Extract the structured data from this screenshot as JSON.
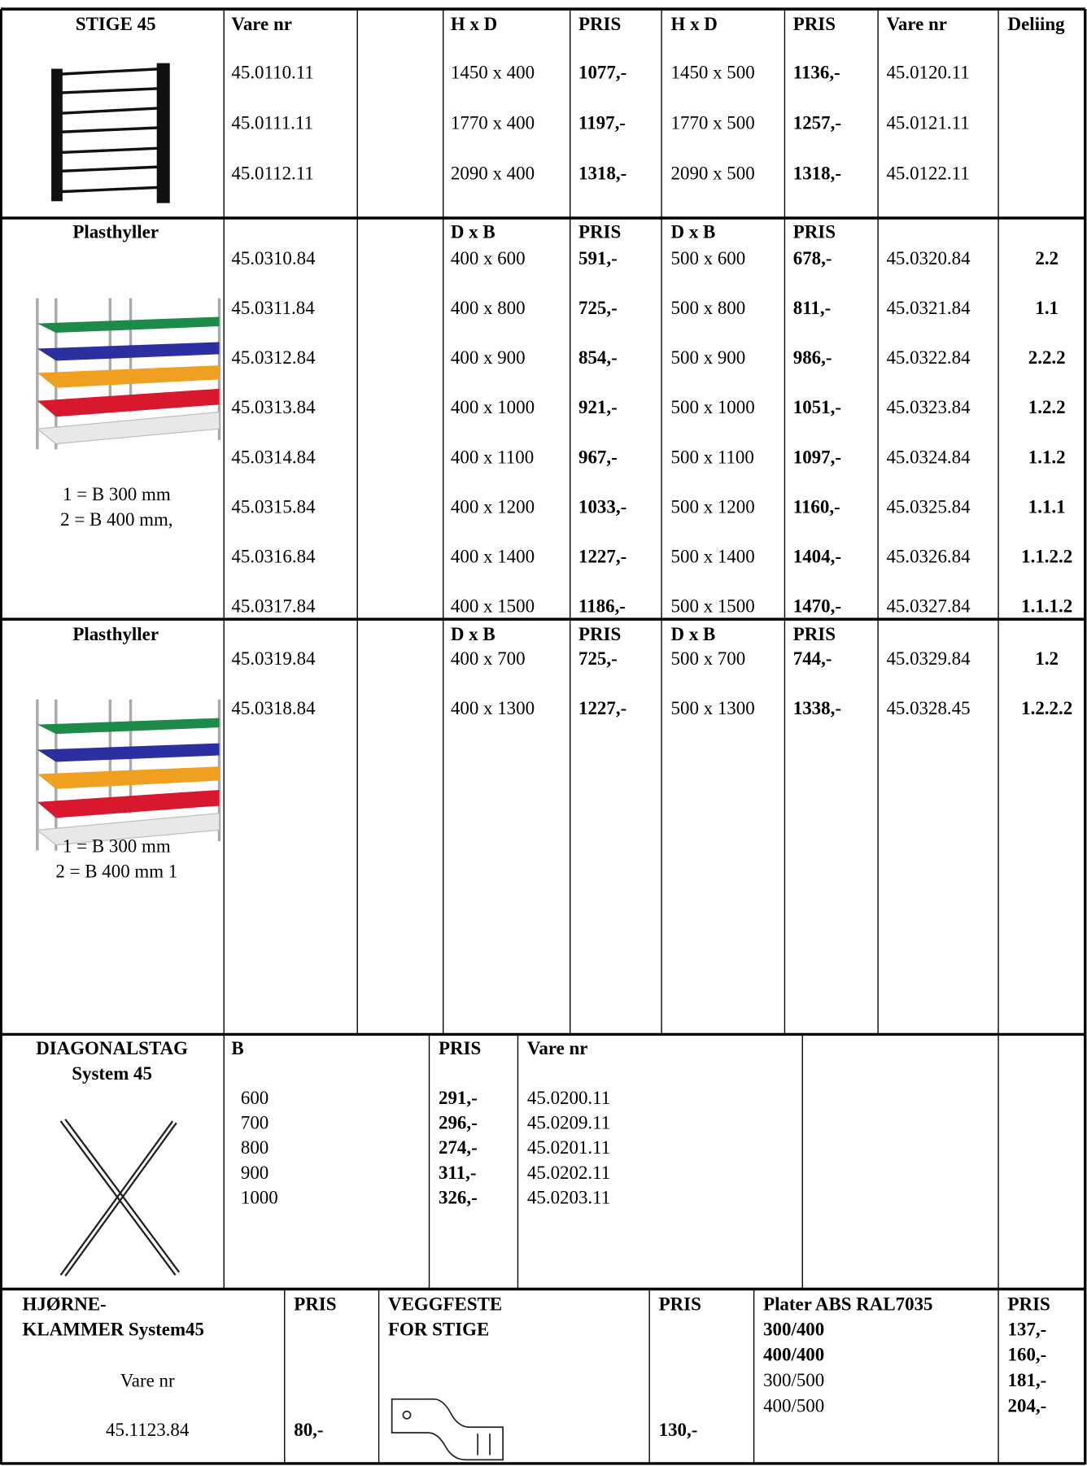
{
  "stige": {
    "title": "STIGE 45",
    "header": [
      "Vare nr",
      "H x D",
      "PRIS",
      "H x D",
      "PRIS",
      "Vare nr",
      "Deliing"
    ],
    "rows": [
      [
        "45.0110.11",
        "1450 x 400",
        "1077,-",
        "1450 x 500",
        "1136,-",
        "45.0120.11"
      ],
      [
        "45.0111.11",
        "1770 x 400",
        "1197,-",
        "1770 x 500",
        "1257,-",
        "45.0121.11"
      ],
      [
        "45.0112.11",
        "2090 x 400",
        "1318,-",
        "2090 x 500",
        "1318,-",
        "45.0122.11"
      ]
    ]
  },
  "plast1": {
    "title": "Plasthyller",
    "header": [
      "D x B",
      "PRIS",
      "D x B",
      "PRIS"
    ],
    "notes": [
      "1 = B 300 mm",
      "2 = B 400 mm,"
    ],
    "rows": [
      [
        "45.0310.84",
        "400 x  600",
        "591,-",
        "500 x  600",
        "678,-",
        "45.0320.84",
        "2.2"
      ],
      [
        "45.0311.84",
        "400 x  800",
        "725,-",
        "500 x  800",
        "811,-",
        "45.0321.84",
        "1.1"
      ],
      [
        "45.0312.84",
        "400 x  900",
        "854,-",
        "500 x  900",
        "986,-",
        "45.0322.84",
        "2.2.2"
      ],
      [
        "45.0313.84",
        "400 x 1000",
        "921,-",
        "500 x 1000",
        "1051,-",
        "45.0323.84",
        "1.2.2"
      ],
      [
        "45.0314.84",
        "400 x 1100",
        "967,-",
        "500 x 1100",
        "1097,-",
        "45.0324.84",
        "1.1.2"
      ],
      [
        "45.0315.84",
        "400 x 1200",
        "1033,-",
        "500 x 1200",
        "1160,-",
        "45.0325.84",
        "1.1.1"
      ],
      [
        "45.0316.84",
        "400 x 1400",
        "1227,-",
        "500 x 1400",
        "1404,-",
        "45.0326.84",
        "1.1.2.2"
      ],
      [
        "45.0317.84",
        "400 x 1500",
        "1186,-",
        "500 x 1500",
        "1470,-",
        "45.0327.84",
        "1.1.1.2"
      ]
    ]
  },
  "plast2": {
    "title": "Plasthyller",
    "header": [
      "D x B",
      "PRIS",
      "D x B",
      "PRIS"
    ],
    "notes": [
      "1 = B 300 mm",
      "2 = B 400 mm 1"
    ],
    "rows": [
      [
        "45.0319.84",
        "400 x  700",
        "725,-",
        "500 x  700",
        "744,-",
        "45.0329.84",
        "1.2"
      ],
      [
        "45.0318.84",
        "400 x 1300",
        "1227,-",
        "500 x 1300",
        "1338,-",
        "45.0328.45",
        "1.2.2.2"
      ]
    ]
  },
  "diag": {
    "title": [
      "DIAGONALSTAG",
      "System 45"
    ],
    "header": [
      "B",
      "PRIS",
      "Vare nr"
    ],
    "rows": [
      [
        "600",
        "291,-",
        "45.0200.11"
      ],
      [
        "700",
        "296,-",
        "45.0209.11"
      ],
      [
        "800",
        "274,-",
        "45.0201.11"
      ],
      [
        "900",
        "311,-",
        "45.0202.11"
      ],
      [
        "1000",
        "326,-",
        "45.0203.11"
      ]
    ]
  },
  "hjorne": {
    "title": [
      "HJØRNE-",
      "KLAMMER System45"
    ],
    "pris_label": "PRIS",
    "vare_label": "Vare nr",
    "vare": "45.1123.84",
    "pris": "80,-"
  },
  "veggfeste": {
    "title": [
      "VEGGFESTE",
      "FOR STIGE"
    ],
    "pris_label": "PRIS",
    "pris": "130,-"
  },
  "plater": {
    "title": "Plater  ABS RAL7035",
    "pris_label": "PRIS",
    "rows": [
      [
        "300/400",
        "137,-"
      ],
      [
        "400/400",
        "160,-"
      ],
      [
        "300/500",
        "181,-"
      ],
      [
        "400/500",
        "204,-"
      ]
    ]
  }
}
